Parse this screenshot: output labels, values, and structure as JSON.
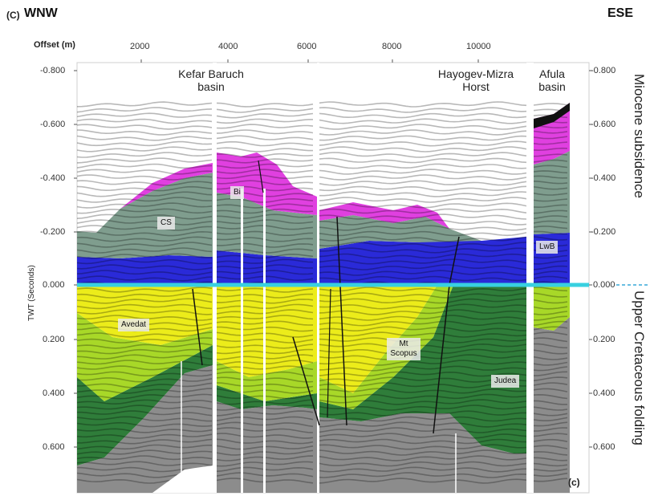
{
  "panel_letter": "(C)",
  "panel_letter_inner": "(c)",
  "direction": {
    "left": "WNW",
    "right": "ESE"
  },
  "offset_axis": {
    "title": "Offset (m)",
    "ticks": [
      "2000",
      "4000",
      "6000",
      "8000",
      "10000"
    ]
  },
  "twt_axis": {
    "title": "TWT (Seconds)",
    "left_ticks": [
      "-0.800",
      "-0.600",
      "-0.400",
      "-0.200",
      "0.000",
      "0.200",
      "0.400",
      "0.600"
    ],
    "right_ticks": [
      "-0.800",
      "-0.600",
      "-0.400",
      "-0.200",
      "0.000",
      "0.200",
      "0.400",
      "0.600"
    ]
  },
  "basins": {
    "kefar": {
      "line1": "Kefar Baruch",
      "line2": "basin"
    },
    "hayogev": {
      "line1": "Hayogev-Mizra",
      "line2": "Horst"
    },
    "afula": {
      "line1": "Afula",
      "line2": "basin"
    }
  },
  "formations": {
    "cs": "CS",
    "bi": "Bi",
    "lwb": "LwB",
    "avedat": "Avedat",
    "mt_scopus": "Mt Scopus",
    "judea": "Judea"
  },
  "side_labels": {
    "upper": "Miocene subsidence",
    "lower": "Upper Cretaceous folding"
  },
  "colors": {
    "magenta": "#e040e0",
    "greygreen": "#7f9d8e",
    "blue": "#2a2ad8",
    "yellow": "#ecec1a",
    "lime": "#a8d828",
    "darkgreen": "#2f7d3a",
    "basement": "#8c8c8c",
    "datum": "#38d0e0"
  }
}
